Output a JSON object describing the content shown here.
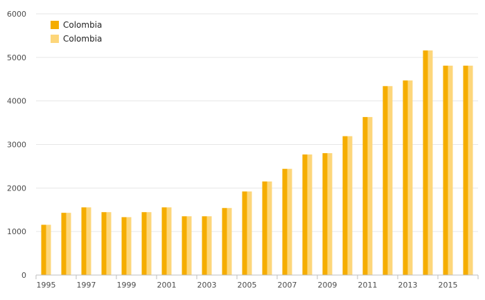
{
  "chart_data": {
    "type": "bar",
    "title": "",
    "xlabel": "",
    "ylabel": "",
    "categories": [
      "1995",
      "1996",
      "1997",
      "1998",
      "1999",
      "2000",
      "2001",
      "2002",
      "2003",
      "2004",
      "2005",
      "2006",
      "2007",
      "2008",
      "2009",
      "2010",
      "2011",
      "2012",
      "2013",
      "2014",
      "2015",
      "2016"
    ],
    "x_tick_labels": [
      "1995",
      "1997",
      "1999",
      "2001",
      "2003",
      "2005",
      "2007",
      "2009",
      "2011",
      "2013",
      "2015"
    ],
    "y_tick_labels": [
      "0",
      "1000",
      "2000",
      "3000",
      "4000",
      "5000",
      "6000"
    ],
    "ylim": [
      0,
      6000
    ],
    "grid": true,
    "legend_position": "top-left",
    "series": [
      {
        "name": "Colombia",
        "color": "#f5ad00",
        "values": [
          1155,
          1430,
          1555,
          1445,
          1330,
          1445,
          1555,
          1350,
          1350,
          1540,
          1920,
          2150,
          2440,
          2770,
          2800,
          3190,
          3630,
          4340,
          4470,
          5160,
          4810,
          4810
        ]
      },
      {
        "name": "Colombia",
        "color": "#fdd67a",
        "values": [
          1155,
          1430,
          1555,
          1445,
          1330,
          1445,
          1555,
          1350,
          1350,
          1540,
          1920,
          2150,
          2440,
          2770,
          2800,
          3190,
          3630,
          4340,
          4470,
          5160,
          4810,
          4810
        ]
      }
    ]
  }
}
